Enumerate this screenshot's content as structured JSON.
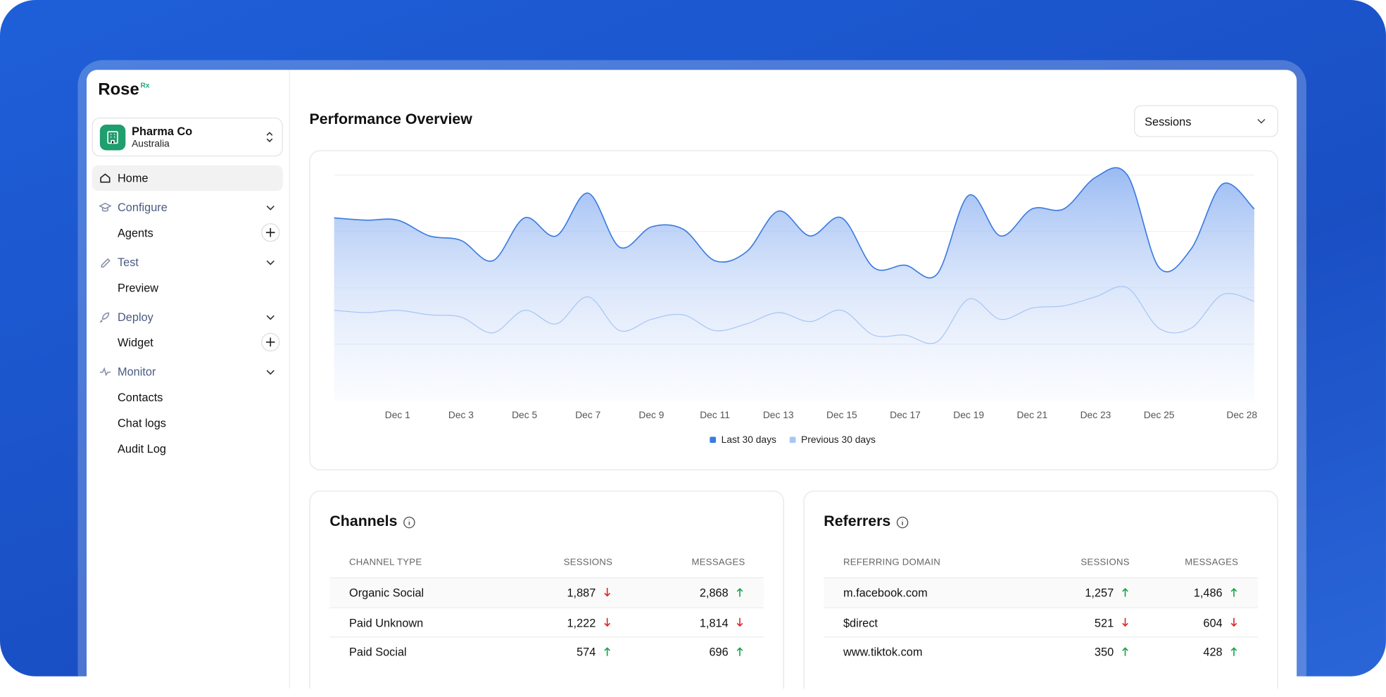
{
  "sidebar": {
    "logo": "Rose",
    "logo_sup": "Rx",
    "org": {
      "name": "Pharma Co",
      "region": "Australia"
    },
    "nav": [
      {
        "label": "Home",
        "active": true
      },
      {
        "label": "Configure",
        "section": true
      },
      {
        "label": "Agents",
        "add": true
      },
      {
        "label": "Test",
        "section": true
      },
      {
        "label": "Preview"
      },
      {
        "label": "Deploy",
        "section": true
      },
      {
        "label": "Widget",
        "add": true
      },
      {
        "label": "Monitor",
        "section": true
      },
      {
        "label": "Contacts"
      },
      {
        "label": "Chat logs"
      },
      {
        "label": "Audit Log"
      }
    ]
  },
  "main": {
    "title": "Performance Overview",
    "dropdown": "Sessions",
    "chart_data": {
      "type": "area",
      "categories": [
        null,
        null,
        "Dec 1",
        null,
        "Dec 3",
        null,
        "Dec 5",
        null,
        "Dec 7",
        null,
        "Dec 9",
        null,
        "Dec 11",
        null,
        "Dec 13",
        null,
        "Dec 15",
        null,
        "Dec 17",
        null,
        "Dec 19",
        null,
        "Dec 21",
        null,
        "Dec 23",
        null,
        "Dec 25",
        null,
        null,
        "Dec 28"
      ],
      "ylim": [
        0,
        100
      ],
      "series": [
        {
          "name": "Last 30 days",
          "color": "#3b7be0",
          "values": [
            81,
            80,
            80,
            73,
            71,
            62,
            81,
            73,
            92,
            68,
            77,
            76,
            62,
            66,
            84,
            73,
            81,
            59,
            60,
            56,
            91,
            73,
            85,
            85,
            99,
            100,
            59,
            67,
            96,
            85
          ]
        },
        {
          "name": "Previous 30 days",
          "color": "#a9c6f5",
          "values": [
            40,
            39,
            40,
            38,
            37,
            30,
            40,
            34,
            46,
            31,
            36,
            38,
            31,
            34,
            39,
            35,
            40,
            29,
            29,
            26,
            45,
            36,
            41,
            42,
            46,
            50,
            32,
            32,
            47,
            44
          ]
        }
      ]
    },
    "tables": [
      {
        "title": "Channels",
        "columns": [
          "CHANNEL TYPE",
          "SESSIONS",
          "MESSAGES"
        ],
        "rows": [
          {
            "cells": [
              "Organic Social",
              "1,887",
              "2,868"
            ],
            "trends": [
              "down",
              "up"
            ]
          },
          {
            "cells": [
              "Paid Unknown",
              "1,222",
              "1,814"
            ],
            "trends": [
              "down",
              "down"
            ]
          },
          {
            "cells": [
              "Paid Social",
              "574",
              "696"
            ],
            "trends": [
              "up",
              "up"
            ]
          }
        ]
      },
      {
        "title": "Referrers",
        "columns": [
          "REFERRING DOMAIN",
          "SESSIONS",
          "MESSAGES"
        ],
        "rows": [
          {
            "cells": [
              "m.facebook.com",
              "1,257",
              "1,486"
            ],
            "trends": [
              "up",
              "up"
            ]
          },
          {
            "cells": [
              "$direct",
              "521",
              "604"
            ],
            "trends": [
              "down",
              "down"
            ]
          },
          {
            "cells": [
              "www.tiktok.com",
              "350",
              "428"
            ],
            "trends": [
              "up",
              "up"
            ]
          }
        ]
      }
    ]
  }
}
